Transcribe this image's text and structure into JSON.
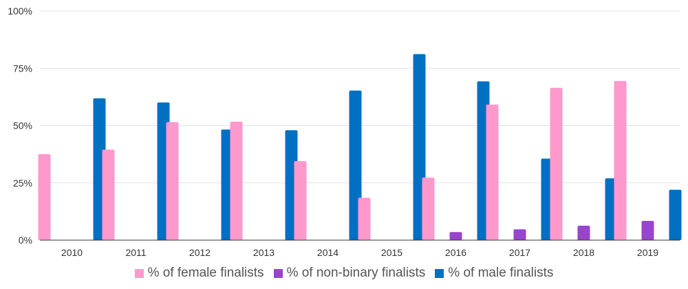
{
  "chart_data": {
    "type": "bar",
    "categories": [
      "2010",
      "2011",
      "2012",
      "2013",
      "2014",
      "2015",
      "2016",
      "2017",
      "2018",
      "2019"
    ],
    "series": [
      {
        "name": "% of female finalists",
        "color": "#ff99cc",
        "values": [
          37.5,
          39.5,
          51.5,
          51.7,
          34.5,
          18.5,
          27.3,
          59.2,
          66.5,
          69.5
        ]
      },
      {
        "name": "% of non-binary finalists",
        "color": "#9944cc",
        "values": [
          0,
          0,
          0,
          0,
          0,
          0,
          3.5,
          4.7,
          6.3,
          8.4
        ]
      },
      {
        "name": "% of male finalists",
        "color": "#0070c0",
        "values": [
          61.9,
          60.1,
          48.3,
          48.0,
          65.3,
          81.2,
          69.3,
          35.6,
          27.0,
          22.0
        ]
      }
    ],
    "yticks": [
      "0%",
      "25%",
      "50%",
      "75%",
      "100%"
    ],
    "ylim": [
      0,
      100
    ],
    "grid": true,
    "legend": "bottom"
  }
}
